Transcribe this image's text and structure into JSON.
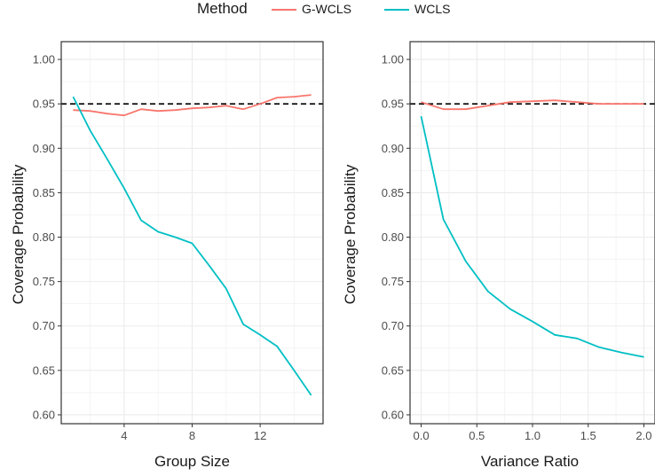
{
  "legend": {
    "title": "Method",
    "entries": [
      {
        "label": "G-WCLS",
        "color": "#F8766D"
      },
      {
        "label": "WCLS",
        "color": "#00BFC4"
      }
    ]
  },
  "chart_data": [
    {
      "type": "line",
      "xlabel": "Group Size",
      "ylabel": "Coverage Probability",
      "xlim": [
        0.3,
        15.7
      ],
      "ylim": [
        0.59,
        1.02
      ],
      "x_ticks": [
        4,
        8,
        12
      ],
      "x_tick_labels": [
        "4",
        "8",
        "12"
      ],
      "y_ticks": [
        0.6,
        0.65,
        0.7,
        0.75,
        0.8,
        0.85,
        0.9,
        0.95,
        1.0
      ],
      "y_tick_labels": [
        "0.60",
        "0.65",
        "0.70",
        "0.75",
        "0.80",
        "0.85",
        "0.90",
        "0.95",
        "1.00"
      ],
      "reference_line": {
        "y": 0.95,
        "style": "dashed"
      },
      "grid": true,
      "series": [
        {
          "name": "G-WCLS",
          "color": "#F8766D",
          "x": [
            1,
            2,
            3,
            4,
            5,
            6,
            7,
            8,
            9,
            10,
            11,
            12,
            13,
            14,
            15
          ],
          "y": [
            0.943,
            0.942,
            0.939,
            0.937,
            0.944,
            0.942,
            0.943,
            0.945,
            0.946,
            0.948,
            0.944,
            0.95,
            0.957,
            0.958,
            0.96
          ]
        },
        {
          "name": "WCLS",
          "color": "#00BFC4",
          "x": [
            1,
            2,
            3,
            4,
            5,
            6,
            7,
            8,
            9,
            10,
            11,
            12,
            13,
            14,
            15
          ],
          "y": [
            0.958,
            0.92,
            0.888,
            0.855,
            0.819,
            0.806,
            0.8,
            0.793,
            0.768,
            0.742,
            0.702,
            0.69,
            0.677,
            0.65,
            0.622
          ]
        }
      ]
    },
    {
      "type": "line",
      "xlabel": "Variance Ratio",
      "ylabel": "Coverage Probability",
      "xlim": [
        -0.1,
        2.1
      ],
      "ylim": [
        0.59,
        1.02
      ],
      "x_ticks": [
        0.0,
        0.5,
        1.0,
        1.5,
        2.0
      ],
      "x_tick_labels": [
        "0.0",
        "0.5",
        "1.0",
        "1.5",
        "2.0"
      ],
      "y_ticks": [
        0.6,
        0.65,
        0.7,
        0.75,
        0.8,
        0.85,
        0.9,
        0.95,
        1.0
      ],
      "y_tick_labels": [
        "0.60",
        "0.65",
        "0.70",
        "0.75",
        "0.80",
        "0.85",
        "0.90",
        "0.95",
        "1.00"
      ],
      "reference_line": {
        "y": 0.95,
        "style": "dashed"
      },
      "grid": true,
      "series": [
        {
          "name": "G-WCLS",
          "color": "#F8766D",
          "x": [
            0.0,
            0.2,
            0.4,
            0.6,
            0.8,
            1.0,
            1.2,
            1.4,
            1.6,
            1.8,
            2.0
          ],
          "y": [
            0.952,
            0.944,
            0.944,
            0.948,
            0.952,
            0.953,
            0.954,
            0.952,
            0.95,
            0.95,
            0.95
          ]
        },
        {
          "name": "WCLS",
          "color": "#00BFC4",
          "x": [
            0.0,
            0.2,
            0.4,
            0.6,
            0.8,
            1.0,
            1.2,
            1.4,
            1.6,
            1.8,
            2.0
          ],
          "y": [
            0.936,
            0.82,
            0.773,
            0.739,
            0.719,
            0.705,
            0.69,
            0.686,
            0.676,
            0.67,
            0.665
          ]
        }
      ]
    }
  ]
}
